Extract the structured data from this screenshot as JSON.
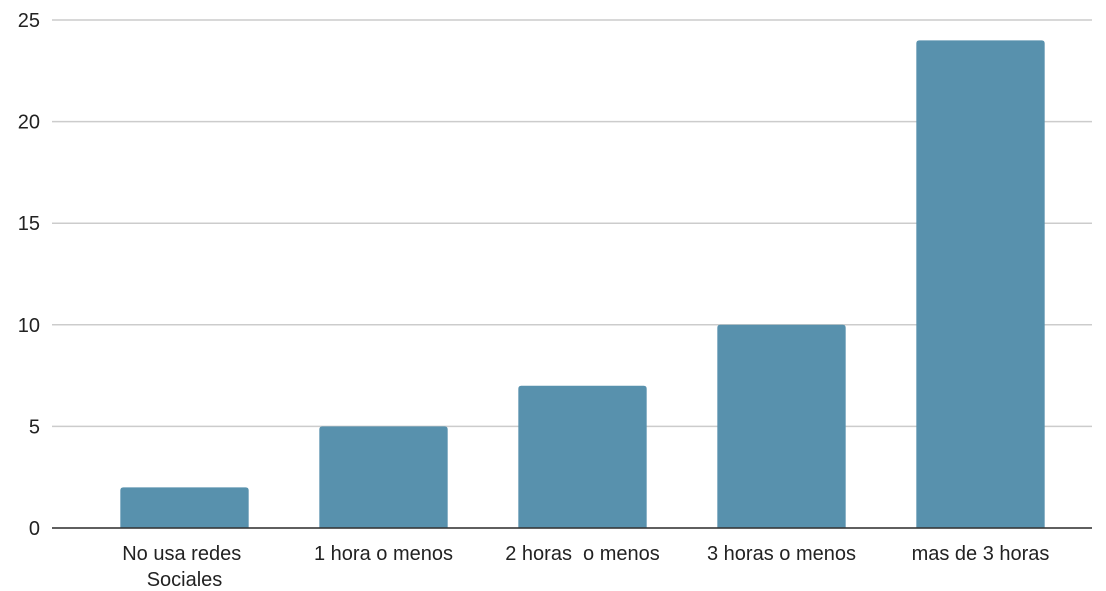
{
  "chart_data": {
    "type": "bar",
    "categories": [
      "No usa redes Sociales",
      "1 hora o menos",
      "2 horas  o menos",
      "3 horas o menos",
      "mas de 3 horas"
    ],
    "values": [
      2,
      5,
      7,
      10,
      24
    ],
    "color": "#5891ad",
    "ylim": [
      0,
      25
    ],
    "yticks": [
      0,
      5,
      10,
      15,
      20,
      25
    ],
    "grid": true
  }
}
